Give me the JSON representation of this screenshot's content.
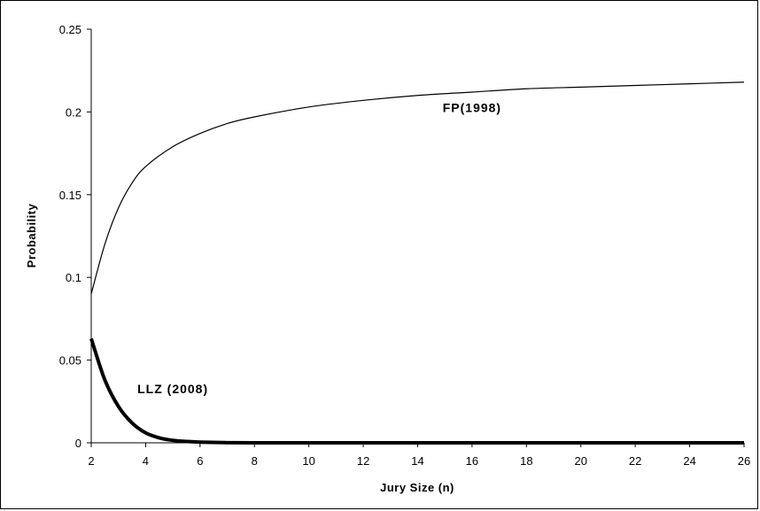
{
  "chart_data": {
    "type": "line",
    "title": "",
    "xlabel": "Jury Size (n)",
    "ylabel": "Probability",
    "xlim": [
      2,
      26
    ],
    "ylim": [
      0,
      0.25
    ],
    "x_ticks": [
      "2",
      "4",
      "6",
      "8",
      "10",
      "12",
      "14",
      "16",
      "18",
      "20",
      "22",
      "24",
      "26"
    ],
    "y_ticks": [
      "0",
      "0.05",
      "0.1",
      "0.15",
      "0.2",
      "0.25"
    ],
    "grid": false,
    "legend": "none",
    "series": [
      {
        "name": "FP(1998)",
        "color": "#000000",
        "x": [
          2,
          2.5,
          3,
          3.5,
          4,
          5,
          6,
          7,
          8,
          10,
          12,
          14,
          16,
          18,
          20,
          22,
          24,
          26
        ],
        "y": [
          0.09,
          0.12,
          0.142,
          0.157,
          0.167,
          0.179,
          0.187,
          0.193,
          0.197,
          0.203,
          0.207,
          0.21,
          0.212,
          0.214,
          0.215,
          0.216,
          0.217,
          0.218
        ]
      },
      {
        "name": "LLZ (2008)",
        "color": "#000000",
        "x": [
          2,
          2.5,
          3,
          3.5,
          4,
          4.5,
          5,
          5.5,
          6,
          7,
          8,
          10,
          14,
          18,
          22,
          26
        ],
        "y": [
          0.063,
          0.038,
          0.022,
          0.012,
          0.006,
          0.003,
          0.0015,
          0.0008,
          0.0004,
          0.0001,
          0,
          0,
          0,
          0,
          0,
          0
        ]
      }
    ],
    "annotations": [
      {
        "text": "FP(1998)",
        "x": 16,
        "y": 0.2
      },
      {
        "text": "LLZ (2008)",
        "x": 5,
        "y": 0.03
      }
    ]
  }
}
